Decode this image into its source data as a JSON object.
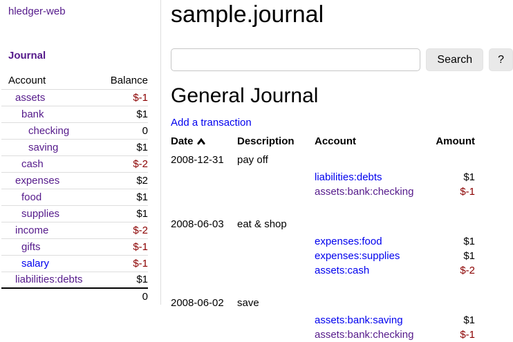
{
  "app": {
    "nav_title": "hledger-web"
  },
  "colors": {
    "link_blue": "#0000ee",
    "link_visited_purple": "#551a8b",
    "negative_red": "#8b0000",
    "divider_gray": "#dddddd",
    "button_bg": "#e9e9e9"
  },
  "sidebar": {
    "section_title": "Journal",
    "table": {
      "headers": {
        "account": "Account",
        "balance": "Balance"
      },
      "rows": [
        {
          "account": "assets",
          "depth": 1,
          "balance": "$-1",
          "negative": true,
          "visited": true
        },
        {
          "account": "bank",
          "depth": 2,
          "balance": "$1",
          "negative": false,
          "visited": true
        },
        {
          "account": "checking",
          "depth": 3,
          "balance": "0",
          "negative": false,
          "visited": true
        },
        {
          "account": "saving",
          "depth": 3,
          "balance": "$1",
          "negative": false,
          "visited": true
        },
        {
          "account": "cash",
          "depth": 2,
          "balance": "$-2",
          "negative": true,
          "visited": true
        },
        {
          "account": "expenses",
          "depth": 1,
          "balance": "$2",
          "negative": false,
          "visited": true
        },
        {
          "account": "food",
          "depth": 2,
          "balance": "$1",
          "negative": false,
          "visited": true
        },
        {
          "account": "supplies",
          "depth": 2,
          "balance": "$1",
          "negative": false,
          "visited": true
        },
        {
          "account": "income",
          "depth": 1,
          "balance": "$-2",
          "negative": true,
          "visited": true
        },
        {
          "account": "gifts",
          "depth": 2,
          "balance": "$-1",
          "negative": true,
          "visited": true
        },
        {
          "account": "salary",
          "depth": 2,
          "balance": "$-1",
          "negative": true,
          "visited": false
        },
        {
          "account": "liabilities:debts",
          "depth": 1,
          "balance": "$1",
          "negative": false,
          "visited": true
        }
      ],
      "total": "0"
    }
  },
  "header": {
    "title": "sample.journal"
  },
  "search": {
    "value": "",
    "button_label": "Search",
    "help_label": "?",
    "sort_icon": "chevron-up-icon"
  },
  "journal": {
    "title": "General Journal",
    "add_link": "Add a transaction",
    "columns": {
      "date": "Date",
      "description": "Description",
      "account": "Account",
      "amount": "Amount"
    },
    "transactions": [
      {
        "date": "2008-12-31",
        "description": "pay off",
        "postings": [
          {
            "account": "liabilities:debts",
            "amount": "$1",
            "negative": false,
            "visited": false
          },
          {
            "account": "assets:bank:checking",
            "amount": "$-1",
            "negative": true,
            "visited": true
          }
        ]
      },
      {
        "date": "2008-06-03",
        "description": "eat & shop",
        "postings": [
          {
            "account": "expenses:food",
            "amount": "$1",
            "negative": false,
            "visited": false
          },
          {
            "account": "expenses:supplies",
            "amount": "$1",
            "negative": false,
            "visited": false
          },
          {
            "account": "assets:cash",
            "amount": "$-2",
            "negative": true,
            "visited": false
          }
        ]
      },
      {
        "date": "2008-06-02",
        "description": "save",
        "postings": [
          {
            "account": "assets:bank:saving",
            "amount": "$1",
            "negative": false,
            "visited": false
          },
          {
            "account": "assets:bank:checking",
            "amount": "$-1",
            "negative": true,
            "visited": true
          }
        ]
      }
    ]
  }
}
